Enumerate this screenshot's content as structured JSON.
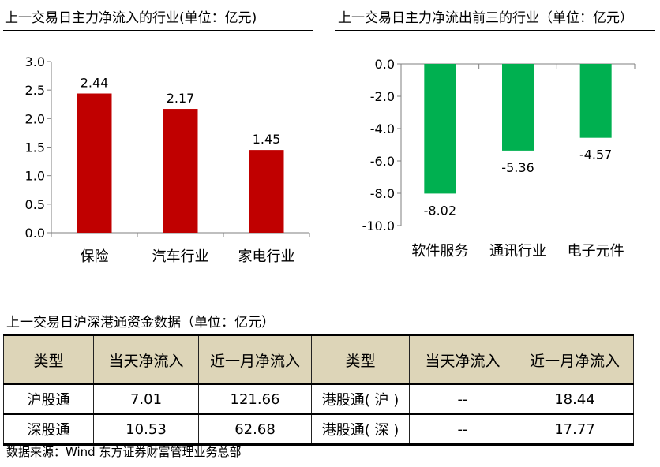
{
  "charts": {
    "inflow": {
      "title": "上一交易日主力净流入的行业(单位：亿元)"
    },
    "outflow": {
      "title": "上一交易日主力净流出前三的行业（单位：亿元）"
    }
  },
  "chart_data": [
    {
      "type": "bar",
      "title": "上一交易日主力净流入的行业(单位：亿元)",
      "categories": [
        "保险",
        "汽车行业",
        "家电行业"
      ],
      "values": [
        2.44,
        2.17,
        1.45
      ],
      "value_labels": [
        "2.44",
        "2.17",
        "1.45"
      ],
      "ylim": [
        0,
        3.0
      ],
      "yticks": [
        "0.0",
        "0.5",
        "1.0",
        "1.5",
        "2.0",
        "2.5",
        "3.0"
      ],
      "grid": false,
      "color": "#c00000"
    },
    {
      "type": "bar",
      "title": "上一交易日主力净流出前三的行业（单位：亿元）",
      "categories": [
        "软件服务",
        "通讯行业",
        "电子元件"
      ],
      "values": [
        -8.02,
        -5.36,
        -4.57
      ],
      "value_labels": [
        "-8.02",
        "-5.36",
        "-4.57"
      ],
      "ylim": [
        -10.0,
        0.0
      ],
      "yticks": [
        "0.0",
        "-2.0",
        "-4.0",
        "-6.0",
        "-8.0",
        "-10.0"
      ],
      "grid": false,
      "color": "#00b050"
    },
    {
      "type": "table",
      "title": "上一交易日沪深港通资金数据（单位：亿元）",
      "headers": [
        "类型",
        "当天净流入",
        "近一月净流入",
        "类型",
        "当天净流入",
        "近一月净流入"
      ],
      "rows": [
        [
          "沪股通",
          "7.01",
          "121.66",
          "港股通( 沪 )",
          "--",
          "18.44"
        ],
        [
          "深股通",
          "10.53",
          "62.68",
          "港股通( 深 )",
          "--",
          "17.77"
        ]
      ]
    }
  ],
  "table": {
    "title": "上一交易日沪深港通资金数据（单位：亿元）",
    "headers": [
      "类型",
      "当天净流入",
      "近一月净流入",
      "类型",
      "当天净流入",
      "近一月净流入"
    ],
    "rows": [
      [
        "沪股通",
        "7.01",
        "121.66",
        "港股通( 沪 )",
        "--",
        "18.44"
      ],
      [
        "深股通",
        "10.53",
        "62.68",
        "港股通( 深 )",
        "--",
        "17.77"
      ]
    ]
  },
  "footer": {
    "source": "数据来源：Wind  东方证券财富管理业务总部"
  }
}
